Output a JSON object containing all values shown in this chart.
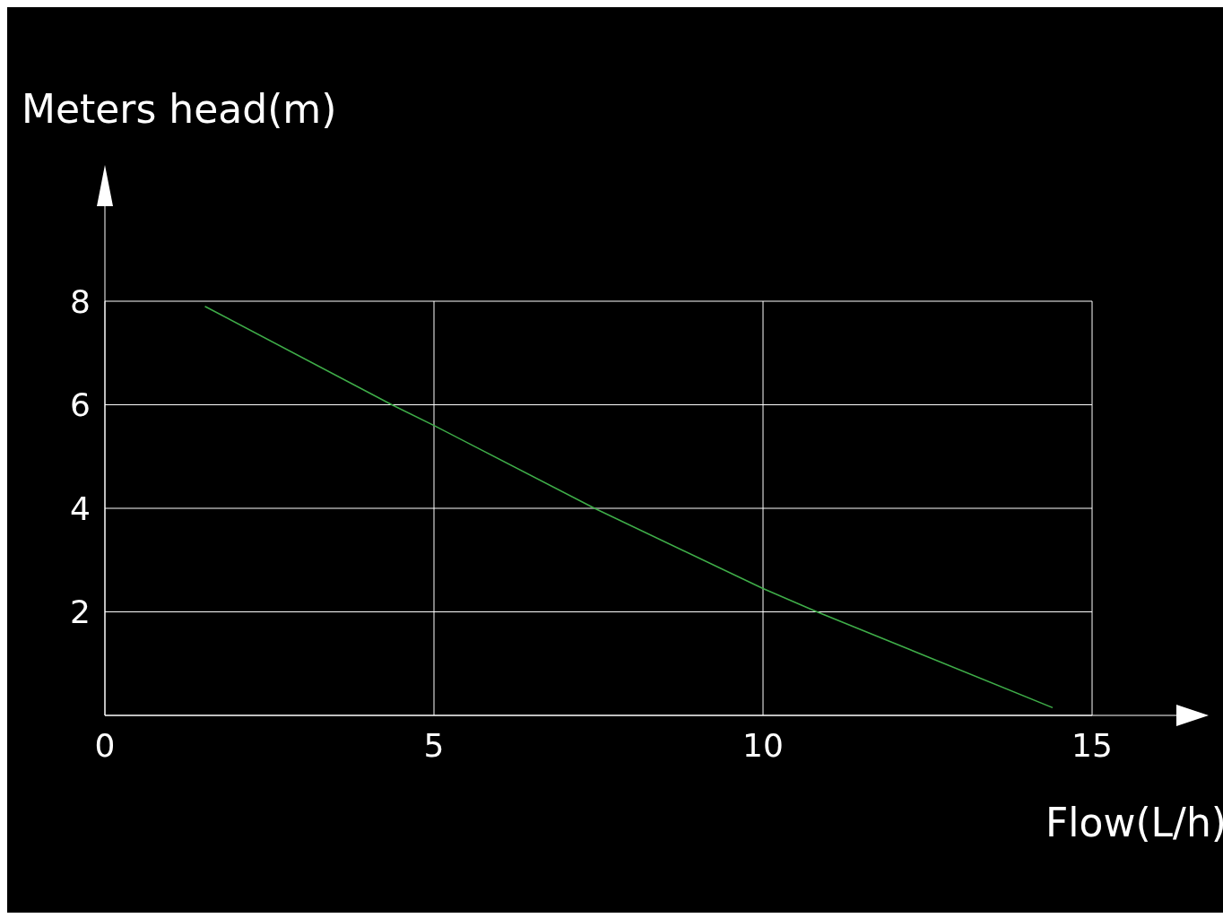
{
  "chart_data": {
    "type": "line",
    "xlabel": "Flow(L/h)",
    "ylabel": "Meters head(m)",
    "series": [
      {
        "color": "#3fae49",
        "x": [
          1.52,
          4.36,
          5,
          7.44,
          10,
          10.82,
          14.4
        ],
        "values": [
          7.9,
          6,
          5.6,
          4,
          2.45,
          2,
          0.15
        ]
      }
    ],
    "xlim": [
      0,
      15
    ],
    "ylim": [
      0,
      8
    ],
    "xticks": [
      0,
      5,
      10,
      15
    ],
    "yticks": [
      2,
      4,
      6,
      8
    ],
    "grid": true,
    "marker": "none",
    "line_style": "solid"
  }
}
